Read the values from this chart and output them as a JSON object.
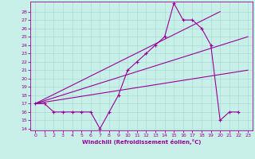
{
  "xlabel": "Windchill (Refroidissement éolien,°C)",
  "bg_color": "#c8f0e8",
  "grid_color": "#a8ddd4",
  "line_color": "#990099",
  "xlim": [
    -0.5,
    23.5
  ],
  "ylim": [
    13.8,
    29.2
  ],
  "yticks": [
    14,
    15,
    16,
    17,
    18,
    19,
    20,
    21,
    22,
    23,
    24,
    25,
    26,
    27,
    28
  ],
  "xticks": [
    0,
    1,
    2,
    3,
    4,
    5,
    6,
    7,
    8,
    9,
    10,
    11,
    12,
    13,
    14,
    15,
    16,
    17,
    18,
    19,
    20,
    21,
    22,
    23
  ],
  "series1_x": [
    0,
    1,
    2,
    3,
    4,
    5,
    6,
    7,
    8,
    9,
    10,
    11,
    12,
    13,
    14,
    15,
    16,
    17,
    18,
    19,
    20,
    21,
    22
  ],
  "series1_y": [
    17,
    17,
    16,
    16,
    16,
    16,
    16,
    14,
    16,
    18,
    21,
    22,
    23,
    24,
    25,
    29,
    27,
    27,
    26,
    24,
    15,
    16,
    16
  ],
  "line1_x": [
    0,
    20
  ],
  "line1_y": [
    17,
    28
  ],
  "line2_x": [
    0,
    23
  ],
  "line2_y": [
    17,
    25
  ],
  "line3_x": [
    0,
    23
  ],
  "line3_y": [
    17,
    21
  ]
}
